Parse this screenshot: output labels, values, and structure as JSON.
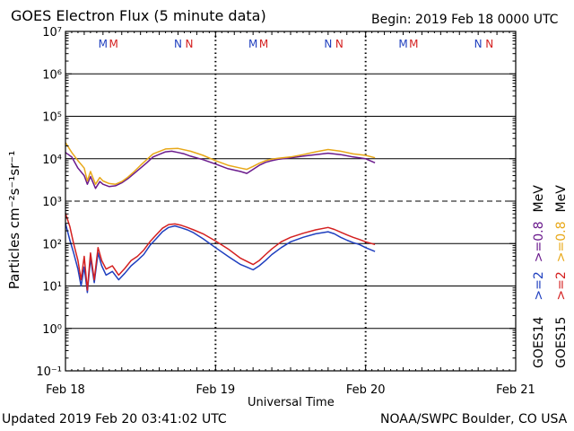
{
  "header": {
    "title": "GOES Electron Flux (5 minute data)",
    "begin": "Begin: 2019 Feb 18 0000 UTC"
  },
  "footer": {
    "updated": "Updated 2019 Feb 20 03:41:02 UTC",
    "credit": "NOAA/SWPC Boulder, CO USA"
  },
  "chart_data": {
    "type": "line",
    "title": "GOES Electron Flux (5 minute data)",
    "xlabel": "Universal Time",
    "ylabel": "Particles cm⁻²s⁻¹sr⁻¹",
    "y_scale": "log",
    "ylim_exponent": [
      -1,
      7
    ],
    "xlim_hours": [
      0,
      72
    ],
    "x_ticks": [
      {
        "hour": 0,
        "label": "Feb 18"
      },
      {
        "hour": 24,
        "label": "Feb 19"
      },
      {
        "hour": 48,
        "label": "Feb 20"
      },
      {
        "hour": 72,
        "label": "Feb 21"
      }
    ],
    "y_ticks": [
      {
        "exp": 7,
        "label": "10⁷"
      },
      {
        "exp": 6,
        "label": "10⁶"
      },
      {
        "exp": 5,
        "label": "10⁵"
      },
      {
        "exp": 4,
        "label": "10⁴"
      },
      {
        "exp": 3,
        "label": "10³"
      },
      {
        "exp": 2,
        "label": "10²"
      },
      {
        "exp": 1,
        "label": "10¹"
      },
      {
        "exp": 0,
        "label": "10⁰"
      },
      {
        "exp": -1,
        "label": "10⁻¹"
      }
    ],
    "alert_threshold_exp": 3,
    "markers": [
      {
        "hour": 6.0,
        "text": "M",
        "color": "#1f3fbf"
      },
      {
        "hour": 7.7,
        "text": "M",
        "color": "#d42020"
      },
      {
        "hour": 18.0,
        "text": "N",
        "color": "#1f3fbf"
      },
      {
        "hour": 19.8,
        "text": "N",
        "color": "#d42020"
      },
      {
        "hour": 30.0,
        "text": "M",
        "color": "#1f3fbf"
      },
      {
        "hour": 31.7,
        "text": "M",
        "color": "#d42020"
      },
      {
        "hour": 42.0,
        "text": "N",
        "color": "#1f3fbf"
      },
      {
        "hour": 43.8,
        "text": "N",
        "color": "#d42020"
      },
      {
        "hour": 54.0,
        "text": "M",
        "color": "#1f3fbf"
      },
      {
        "hour": 55.7,
        "text": "M",
        "color": "#d42020"
      },
      {
        "hour": 66.0,
        "text": "N",
        "color": "#1f3fbf"
      },
      {
        "hour": 67.8,
        "text": "N",
        "color": "#d42020"
      }
    ],
    "legend": {
      "position": "right",
      "columns": [
        {
          "label": "GOES14",
          "entries": [
            {
              "text": ">=2",
              "color": "#1f3fbf"
            },
            {
              "text": ">=0.8",
              "color": "#6a1a8c"
            }
          ]
        },
        {
          "label": "GOES15",
          "entries": [
            {
              "text": ">=2",
              "color": "#d42020"
            },
            {
              "text": ">=0.8",
              "color": "#e8a818"
            }
          ]
        }
      ],
      "unit": "MeV"
    },
    "series": [
      {
        "name": "GOES14 >=0.8 MeV",
        "color": "#6a1a8c",
        "x_hours": [
          0,
          1,
          2,
          3,
          3.5,
          4,
          4.8,
          5.5,
          6,
          7,
          8,
          9,
          10,
          11,
          12,
          13,
          14,
          16,
          17,
          18,
          19,
          20,
          22,
          24,
          26,
          28,
          29,
          30,
          31,
          32,
          33,
          34,
          36,
          38,
          40,
          42,
          44,
          46,
          48,
          49.5
        ],
        "y": [
          14000,
          11000,
          6000,
          4000,
          2500,
          3800,
          2000,
          2900,
          2500,
          2200,
          2300,
          2700,
          3400,
          4500,
          6000,
          8000,
          11000,
          14500,
          15000,
          14000,
          13000,
          11500,
          9500,
          7500,
          5800,
          5000,
          4500,
          5600,
          7000,
          8200,
          9000,
          9700,
          10500,
          11500,
          12500,
          13500,
          12500,
          11000,
          10000,
          8000
        ]
      },
      {
        "name": "GOES15 >=0.8 MeV",
        "color": "#e8a818",
        "x_hours": [
          0,
          1,
          2,
          3,
          3.5,
          4,
          4.8,
          5.5,
          6,
          7,
          8,
          9,
          10,
          11,
          12,
          13,
          14,
          16,
          18,
          20,
          22,
          24,
          26,
          28,
          29,
          30,
          31,
          32,
          33,
          34,
          36,
          38,
          40,
          42,
          44,
          46,
          48,
          49.5
        ],
        "y": [
          24000,
          14000,
          9000,
          6000,
          3000,
          5000,
          2500,
          3600,
          3000,
          2600,
          2500,
          2900,
          3700,
          5000,
          7000,
          9500,
          13000,
          17000,
          17500,
          15000,
          12000,
          9000,
          7000,
          6000,
          5600,
          6600,
          7800,
          9000,
          9800,
          10200,
          11000,
          12500,
          14500,
          16500,
          15000,
          13000,
          12000,
          10500
        ]
      },
      {
        "name": "GOES14 >=2 MeV",
        "color": "#1f3fbf",
        "x_hours": [
          0,
          0.7,
          1.3,
          2,
          2.5,
          3,
          3.5,
          4,
          4.6,
          5.2,
          5.8,
          6.5,
          7.5,
          8.5,
          9.5,
          10.5,
          11.5,
          12.5,
          13.5,
          14.5,
          15.5,
          16.5,
          17.5,
          18.5,
          19.5,
          20.5,
          22,
          24,
          26,
          28,
          29,
          30,
          31,
          32,
          33,
          34.5,
          36,
          38,
          40,
          42,
          43,
          44,
          45,
          46,
          47,
          48,
          49.5
        ],
        "y": [
          300,
          120,
          60,
          25,
          10,
          28,
          7,
          45,
          12,
          60,
          30,
          18,
          22,
          14,
          20,
          30,
          40,
          55,
          90,
          130,
          190,
          240,
          260,
          235,
          210,
          180,
          130,
          80,
          50,
          32,
          28,
          24,
          30,
          40,
          55,
          80,
          110,
          140,
          170,
          190,
          170,
          140,
          120,
          105,
          95,
          80,
          65
        ]
      },
      {
        "name": "GOES15 >=2 MeV",
        "color": "#d42020",
        "x_hours": [
          0,
          0.7,
          1.3,
          2,
          2.5,
          3,
          3.5,
          4,
          4.6,
          5.2,
          5.8,
          6.5,
          7.5,
          8.5,
          9.5,
          10.5,
          11.5,
          12.5,
          13.5,
          14.5,
          15.5,
          16.5,
          17.5,
          18.5,
          19.5,
          20.5,
          22,
          24,
          26,
          28,
          29,
          30,
          31,
          32,
          33,
          34.5,
          36,
          38,
          40,
          42,
          43,
          44,
          45,
          46,
          47,
          48,
          49.5
        ],
        "y": [
          520,
          250,
          100,
          40,
          14,
          50,
          8,
          60,
          14,
          80,
          40,
          25,
          30,
          18,
          26,
          40,
          50,
          70,
          110,
          160,
          230,
          280,
          290,
          270,
          240,
          210,
          170,
          115,
          75,
          45,
          38,
          32,
          40,
          55,
          75,
          110,
          140,
          175,
          210,
          240,
          215,
          185,
          160,
          140,
          125,
          110,
          95
        ]
      }
    ]
  }
}
